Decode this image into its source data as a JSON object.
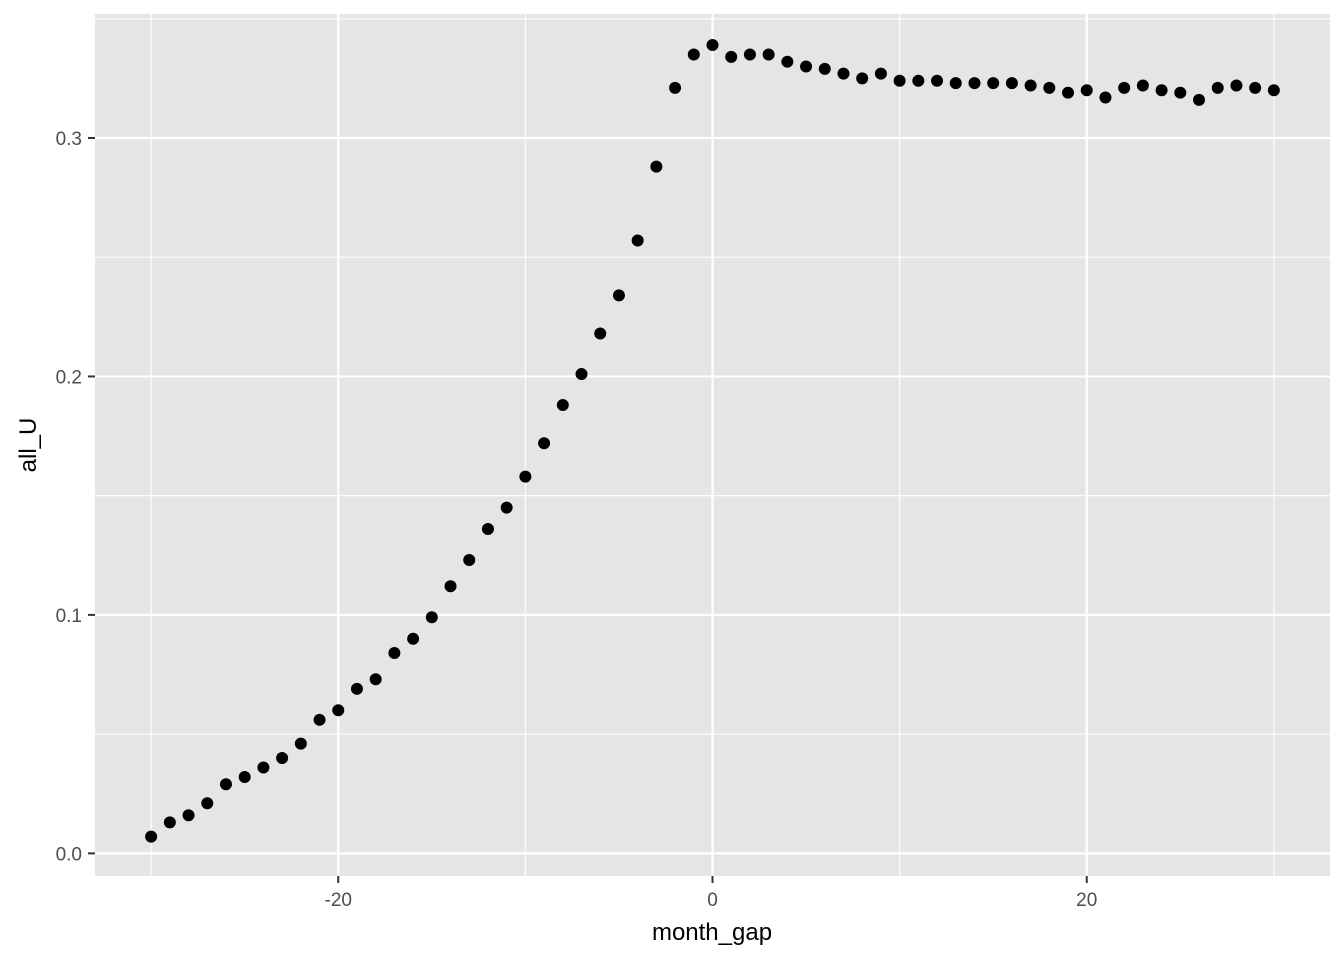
{
  "chart_data": {
    "type": "scatter",
    "xlabel": "month_gap",
    "ylabel": "all_U",
    "xlim": [
      -33,
      33
    ],
    "ylim": [
      -0.0095,
      0.352
    ],
    "x_ticks": [
      -20,
      0,
      20
    ],
    "x_tick_labels": [
      "-20",
      "0",
      "20"
    ],
    "x_minor": [
      -30,
      -10,
      10,
      30
    ],
    "y_ticks": [
      0.0,
      0.1,
      0.2,
      0.3
    ],
    "y_tick_labels": [
      "0.0",
      "0.1",
      "0.2",
      "0.3"
    ],
    "y_minor": [
      0.05,
      0.15,
      0.25,
      0.35
    ],
    "grid": true,
    "legend": "none",
    "colors": {
      "panel": "#e5e5e5",
      "grid": "#ffffff",
      "point": "#000000",
      "tick": "#4d4d4d"
    },
    "series": [
      {
        "x": [
          -30,
          -29,
          -28,
          -27,
          -26,
          -25,
          -24,
          -23,
          -22,
          -21,
          -20,
          -19,
          -18,
          -17,
          -16,
          -15,
          -14,
          -13,
          -12,
          -11,
          -10,
          -9,
          -8,
          -7,
          -6,
          -5,
          -4,
          -3,
          -2,
          -1,
          0,
          1,
          2,
          3,
          4,
          5,
          6,
          7,
          8,
          9,
          10,
          11,
          12,
          13,
          14,
          15,
          16,
          17,
          18,
          19,
          20,
          21,
          22,
          23,
          24,
          25,
          26,
          27,
          28,
          29,
          30
        ],
        "y": [
          0.007,
          0.013,
          0.016,
          0.021,
          0.029,
          0.032,
          0.036,
          0.04,
          0.046,
          0.056,
          0.06,
          0.069,
          0.073,
          0.084,
          0.09,
          0.099,
          0.112,
          0.123,
          0.136,
          0.145,
          0.158,
          0.172,
          0.188,
          0.201,
          0.218,
          0.234,
          0.257,
          0.288,
          0.321,
          0.335,
          0.339,
          0.334,
          0.335,
          0.335,
          0.332,
          0.33,
          0.329,
          0.327,
          0.325,
          0.327,
          0.324,
          0.324,
          0.324,
          0.323,
          0.323,
          0.323,
          0.323,
          0.322,
          0.321,
          0.319,
          0.32,
          0.317,
          0.321,
          0.322,
          0.32,
          0.319,
          0.316,
          0.321,
          0.322,
          0.321,
          0.32
        ]
      }
    ]
  }
}
